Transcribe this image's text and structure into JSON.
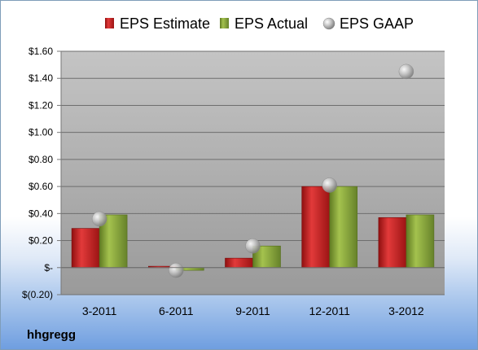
{
  "chart_data": {
    "type": "bar",
    "categories": [
      "3-2011",
      "6-2011",
      "9-2011",
      "12-2011",
      "3-2012"
    ],
    "series": [
      {
        "name": "EPS Estimate",
        "kind": "bar",
        "values": [
          0.29,
          0.01,
          0.07,
          0.6,
          0.37
        ],
        "color": "#cc1f1f"
      },
      {
        "name": "EPS Actual",
        "kind": "bar",
        "values": [
          0.39,
          -0.02,
          0.16,
          0.6,
          0.39
        ],
        "color": "#8aa83a"
      },
      {
        "name": "EPS GAAP",
        "kind": "marker",
        "values": [
          0.36,
          -0.02,
          0.16,
          0.61,
          1.45
        ],
        "color": "#b8b8b8"
      }
    ],
    "y_ticks": [
      "$1.60",
      "$1.40",
      "$1.20",
      "$1.00",
      "$0.80",
      "$0.60",
      "$0.40",
      "$0.20",
      "$-",
      "$(0.20)"
    ],
    "ylim": [
      -0.2,
      1.6
    ],
    "grid": true,
    "legend_position": "top"
  },
  "footer": {
    "company": "hhgregg"
  }
}
